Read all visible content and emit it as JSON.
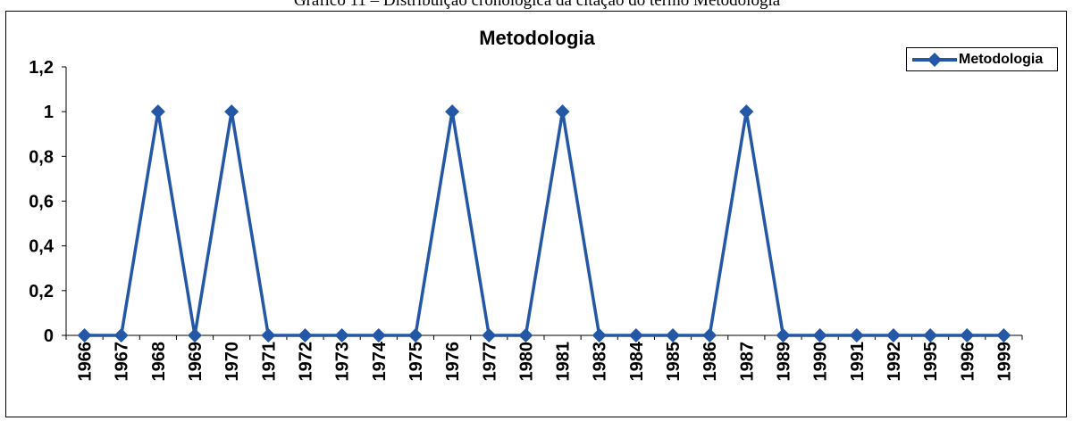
{
  "page": {
    "top_text": "Gráfico 11 – Distribuição cronológica da citação do termo Metodologia"
  },
  "chart_data": {
    "type": "line",
    "title": "Metodologia",
    "xlabel": "",
    "ylabel": "",
    "ylim": [
      0,
      1.2
    ],
    "yticks": [
      "0",
      "0,2",
      "0,4",
      "0,6",
      "0,8",
      "1",
      "1,2"
    ],
    "grid": false,
    "legend_position": "top-right",
    "categories": [
      "1966",
      "1967",
      "1968",
      "1969",
      "1970",
      "1971",
      "1972",
      "1973",
      "1974",
      "1975",
      "1976",
      "1977",
      "1980",
      "1981",
      "1983",
      "1984",
      "1985",
      "1986",
      "1987",
      "1989",
      "1990",
      "1991",
      "1992",
      "1995",
      "1996",
      "1999"
    ],
    "series": [
      {
        "name": "Metodologia",
        "color": "#2457A6",
        "marker": "diamond",
        "values": [
          0,
          0,
          1,
          0,
          1,
          0,
          0,
          0,
          0,
          0,
          1,
          0,
          0,
          1,
          0,
          0,
          0,
          0,
          1,
          0,
          0,
          0,
          0,
          0,
          0,
          0
        ]
      }
    ]
  }
}
